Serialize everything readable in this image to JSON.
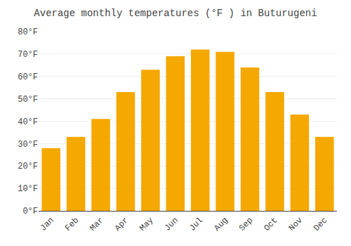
{
  "chart_data": {
    "type": "bar",
    "title": "Average monthly temperatures (°F ) in Buturugeni",
    "categories": [
      "Jan",
      "Feb",
      "Mar",
      "Apr",
      "May",
      "Jun",
      "Jul",
      "Aug",
      "Sep",
      "Oct",
      "Nov",
      "Dec"
    ],
    "values": [
      28,
      33,
      41,
      53,
      63,
      69,
      72,
      71,
      64,
      53,
      43,
      33
    ],
    "color": "#F5A800",
    "ylim": [
      0,
      80
    ],
    "yticks": [
      {
        "value": 0,
        "label": "0°F"
      },
      {
        "value": 10,
        "label": "10°F"
      },
      {
        "value": 20,
        "label": "20°F"
      },
      {
        "value": 30,
        "label": "30°F"
      },
      {
        "value": 40,
        "label": "40°F"
      },
      {
        "value": 50,
        "label": "50°F"
      },
      {
        "value": 60,
        "label": "60°F"
      },
      {
        "value": 70,
        "label": "70°F"
      },
      {
        "value": 80,
        "label": "80°F"
      }
    ],
    "grid": true
  }
}
